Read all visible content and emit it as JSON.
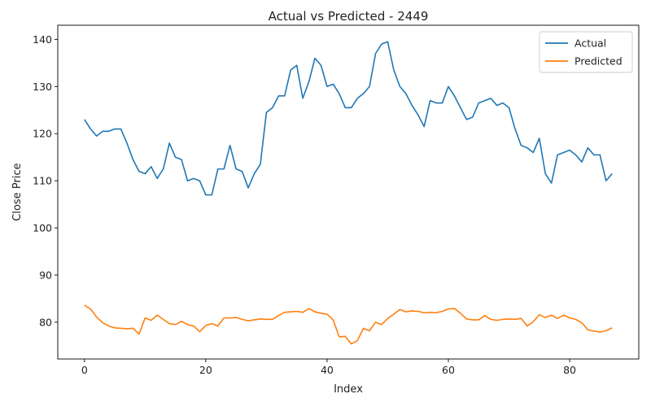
{
  "chart_data": {
    "type": "line",
    "title": "Actual vs Predicted - 2449",
    "xlabel": "Index",
    "ylabel": "Close Price",
    "xlim": [
      -4.4,
      91.4
    ],
    "ylim": [
      72.2,
      143.0
    ],
    "xticks": [
      0,
      20,
      40,
      60,
      80
    ],
    "yticks": [
      80,
      90,
      100,
      110,
      120,
      130,
      140
    ],
    "grid": false,
    "legend_position": "top-right",
    "series": [
      {
        "name": "Actual",
        "color": "#1f77b4",
        "values": [
          123.0,
          121.0,
          119.5,
          120.5,
          120.5,
          121.0,
          121.0,
          118.0,
          114.5,
          112.0,
          111.5,
          113.0,
          110.5,
          112.5,
          118.0,
          115.0,
          114.5,
          110.0,
          110.5,
          110.0,
          107.0,
          107.0,
          112.5,
          112.5,
          117.5,
          112.5,
          112.0,
          108.5,
          111.5,
          113.5,
          124.5,
          125.5,
          128.0,
          128.0,
          133.5,
          134.5,
          127.5,
          131.0,
          136.0,
          134.5,
          130.0,
          130.5,
          128.5,
          125.5,
          125.5,
          127.5,
          128.5,
          130.0,
          137.0,
          139.0,
          139.5,
          133.5,
          130.0,
          128.5,
          126.0,
          124.0,
          121.5,
          127.0,
          126.5,
          126.5,
          130.0,
          128.0,
          125.5,
          123.0,
          123.5,
          126.5,
          127.0,
          127.5,
          126.0,
          126.5,
          125.5,
          121.0,
          117.5,
          117.0,
          116.0,
          119.0,
          111.5,
          109.5,
          115.5,
          116.0,
          116.5,
          115.5,
          114.0,
          117.0,
          115.5,
          115.5,
          110.0,
          111.5
        ]
      },
      {
        "name": "Predicted",
        "color": "#ff7f0e",
        "values": [
          83.6,
          82.8,
          81.1,
          79.9,
          79.2,
          78.8,
          78.7,
          78.6,
          78.7,
          77.5,
          80.9,
          80.4,
          81.5,
          80.6,
          79.7,
          79.5,
          80.2,
          79.5,
          79.2,
          78.0,
          79.3,
          79.7,
          79.2,
          80.9,
          80.9,
          81.0,
          80.6,
          80.3,
          80.5,
          80.7,
          80.6,
          80.6,
          81.4,
          82.1,
          82.2,
          82.3,
          82.1,
          82.9,
          82.2,
          81.9,
          81.7,
          80.5,
          76.9,
          77.0,
          75.4,
          76.1,
          78.7,
          78.2,
          80.0,
          79.5,
          80.8,
          81.7,
          82.7,
          82.2,
          82.4,
          82.3,
          82.0,
          82.1,
          82.0,
          82.3,
          82.8,
          82.9,
          81.9,
          80.7,
          80.5,
          80.5,
          81.4,
          80.6,
          80.4,
          80.6,
          80.7,
          80.6,
          80.8,
          79.2,
          80.1,
          81.6,
          81.0,
          81.5,
          80.8,
          81.5,
          80.9,
          80.6,
          79.9,
          78.4,
          78.1,
          77.9,
          78.2,
          78.8
        ]
      }
    ]
  }
}
